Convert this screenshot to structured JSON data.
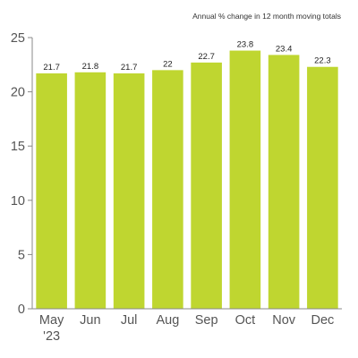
{
  "chart_data": {
    "type": "bar",
    "title": "",
    "subtitle": "Annual % change in 12 month moving totals",
    "xlabel": "",
    "ylabel": "",
    "categories": [
      "May",
      "Jun",
      "Jul",
      "Aug",
      "Sep",
      "Oct",
      "Nov",
      "Dec"
    ],
    "category_sublabels": [
      "'23",
      "",
      "",
      "",
      "",
      "",
      "",
      ""
    ],
    "values": [
      21.7,
      21.8,
      21.7,
      22,
      22.7,
      23.8,
      23.4,
      22.3
    ],
    "data_labels": [
      "21.7",
      "21.8",
      "21.7",
      "22",
      "22.7",
      "23.8",
      "23.4",
      "22.3"
    ],
    "ylim": [
      0,
      25
    ],
    "yticks": [
      0,
      5,
      10,
      15,
      20,
      25
    ],
    "grid": false,
    "legend": "none",
    "bar_color": "#bfd630"
  }
}
